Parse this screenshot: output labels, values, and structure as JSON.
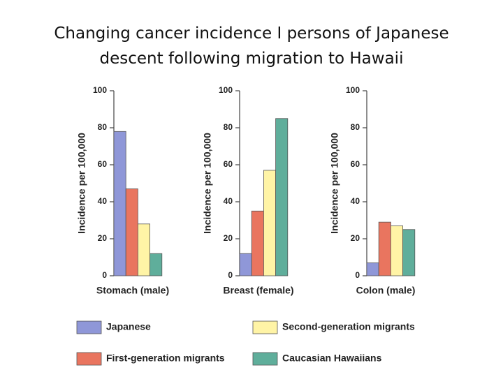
{
  "title": "Changing cancer incidence I persons of Japanese descent following migration to Hawaii",
  "legend": [
    {
      "name": "Japanese",
      "color": "#8f97d8"
    },
    {
      "name": "First-generation migrants",
      "color": "#e9755f"
    },
    {
      "name": "Second-generation migrants",
      "color": "#fff4a6"
    },
    {
      "name": "Caucasian Hawaiians",
      "color": "#5fae9b"
    }
  ],
  "chart_data": [
    {
      "type": "bar",
      "xlabel": "Stomach (male)",
      "ylabel": "Incidence per 100,000",
      "values": [
        78,
        47,
        28,
        12
      ],
      "ylim": [
        0,
        100
      ],
      "yticks": [
        0,
        20,
        40,
        60,
        80,
        100
      ]
    },
    {
      "type": "bar",
      "xlabel": "Breast (female)",
      "ylabel": "Incidence per 100,000",
      "values": [
        12,
        35,
        57,
        85
      ],
      "ylim": [
        0,
        100
      ],
      "yticks": [
        0,
        20,
        40,
        60,
        80,
        100
      ]
    },
    {
      "type": "bar",
      "xlabel": "Colon (male)",
      "ylabel": "Incidence per 100,000",
      "values": [
        7,
        29,
        27,
        25
      ],
      "ylim": [
        0,
        100
      ],
      "yticks": [
        0,
        20,
        40,
        60,
        80,
        100
      ]
    }
  ]
}
